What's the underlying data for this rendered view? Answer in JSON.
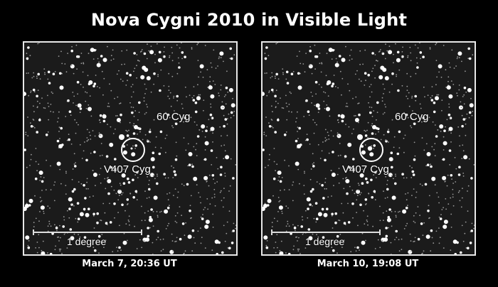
{
  "title": "Nova Cygni 2010 in Visible Light",
  "panels": [
    {
      "caption": "March 7, 20:36 UT",
      "star_label": "60 Cyg",
      "target_label": "V407 Cyg",
      "scale_label": "1 degree"
    },
    {
      "caption": "March 10, 19:08 UT",
      "star_label": "60 Cyg",
      "target_label": "V407 Cyg",
      "scale_label": "1 degree"
    }
  ]
}
